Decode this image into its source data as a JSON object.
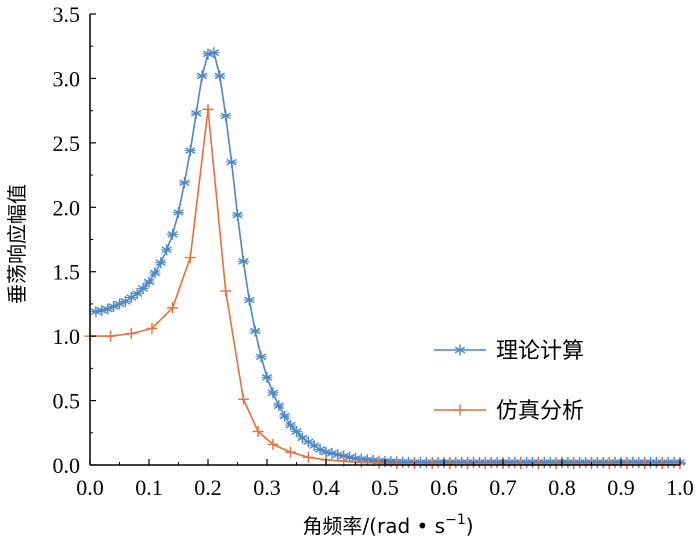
{
  "chart_data": {
    "type": "line",
    "xlabel": "角频率/(rad • s",
    "xlabel_sup": "−1",
    "xlabel_close": ")",
    "ylabel": "垂荡响应幅值",
    "xlim": [
      0.0,
      1.0
    ],
    "ylim": [
      0.0,
      3.5
    ],
    "x_ticks": [
      "0.0",
      "0.1",
      "0.2",
      "0.3",
      "0.4",
      "0.5",
      "0.6",
      "0.7",
      "0.8",
      "0.9",
      "1.0"
    ],
    "y_ticks": [
      "0.0",
      "0.5",
      "1.0",
      "1.5",
      "2.0",
      "2.5",
      "3.0",
      "3.5"
    ],
    "grid": false,
    "legend_position": "right",
    "series": [
      {
        "name": "理论计算",
        "color": "#4a86c8",
        "marker": "asterisk",
        "x": [
          0.01,
          0.02,
          0.03,
          0.04,
          0.05,
          0.06,
          0.07,
          0.08,
          0.09,
          0.1,
          0.11,
          0.12,
          0.13,
          0.14,
          0.15,
          0.16,
          0.17,
          0.18,
          0.19,
          0.2,
          0.21,
          0.22,
          0.23,
          0.24,
          0.25,
          0.26,
          0.27,
          0.28,
          0.29,
          0.3,
          0.31,
          0.32,
          0.33,
          0.34,
          0.35,
          0.36,
          0.37,
          0.38,
          0.39,
          0.4,
          0.41,
          0.42,
          0.43,
          0.44,
          0.45,
          0.46,
          0.47,
          0.48,
          0.49,
          0.5,
          0.51,
          0.52,
          0.53,
          0.54,
          0.55,
          0.56,
          0.57,
          0.58,
          0.59,
          0.6,
          0.61,
          0.62,
          0.63,
          0.64,
          0.65,
          0.66,
          0.67,
          0.68,
          0.69,
          0.7,
          0.71,
          0.72,
          0.73,
          0.74,
          0.75,
          0.76,
          0.77,
          0.78,
          0.79,
          0.8,
          0.81,
          0.82,
          0.83,
          0.84,
          0.85,
          0.86,
          0.87,
          0.88,
          0.89,
          0.9,
          0.91,
          0.92,
          0.93,
          0.94,
          0.95,
          0.96,
          0.97,
          0.98,
          0.99,
          1.0
        ],
        "y": [
          1.19,
          1.2,
          1.21,
          1.23,
          1.25,
          1.27,
          1.3,
          1.33,
          1.37,
          1.42,
          1.49,
          1.57,
          1.67,
          1.79,
          1.96,
          2.19,
          2.44,
          2.73,
          3.02,
          3.19,
          3.2,
          3.02,
          2.71,
          2.35,
          1.94,
          1.58,
          1.28,
          1.04,
          0.84,
          0.68,
          0.56,
          0.46,
          0.38,
          0.31,
          0.26,
          0.21,
          0.18,
          0.15,
          0.12,
          0.1,
          0.09,
          0.08,
          0.07,
          0.06,
          0.05,
          0.045,
          0.04,
          0.035,
          0.03,
          0.028,
          0.026,
          0.024,
          0.022,
          0.021,
          0.02,
          0.02,
          0.02,
          0.02,
          0.02,
          0.02,
          0.02,
          0.02,
          0.02,
          0.02,
          0.02,
          0.02,
          0.02,
          0.02,
          0.02,
          0.02,
          0.02,
          0.02,
          0.02,
          0.02,
          0.02,
          0.02,
          0.02,
          0.02,
          0.02,
          0.02,
          0.02,
          0.02,
          0.02,
          0.02,
          0.02,
          0.02,
          0.02,
          0.02,
          0.02,
          0.02,
          0.02,
          0.02,
          0.02,
          0.02,
          0.02,
          0.02,
          0.02,
          0.02,
          0.02,
          0.02
        ]
      },
      {
        "name": "仿真分析",
        "color": "#e8703a",
        "marker": "plus",
        "x": [
          0.0,
          0.035,
          0.07,
          0.105,
          0.14,
          0.17,
          0.2,
          0.23,
          0.26,
          0.285,
          0.31,
          0.34,
          0.37,
          0.4,
          0.43,
          0.46,
          0.49,
          0.52,
          0.55,
          0.58,
          0.61,
          0.64,
          0.67,
          0.7,
          0.73,
          0.76,
          0.79,
          0.82,
          0.85,
          0.88,
          0.91,
          0.94,
          0.97,
          1.0
        ],
        "y": [
          1.0,
          1.0,
          1.02,
          1.06,
          1.22,
          1.61,
          2.76,
          1.35,
          0.51,
          0.26,
          0.16,
          0.1,
          0.06,
          0.04,
          0.03,
          0.02,
          0.015,
          0.01,
          0.01,
          0.01,
          0.01,
          0.01,
          0.01,
          0.01,
          0.01,
          0.01,
          0.01,
          0.01,
          0.01,
          0.01,
          0.01,
          0.01,
          0.01,
          0.01
        ]
      }
    ]
  }
}
